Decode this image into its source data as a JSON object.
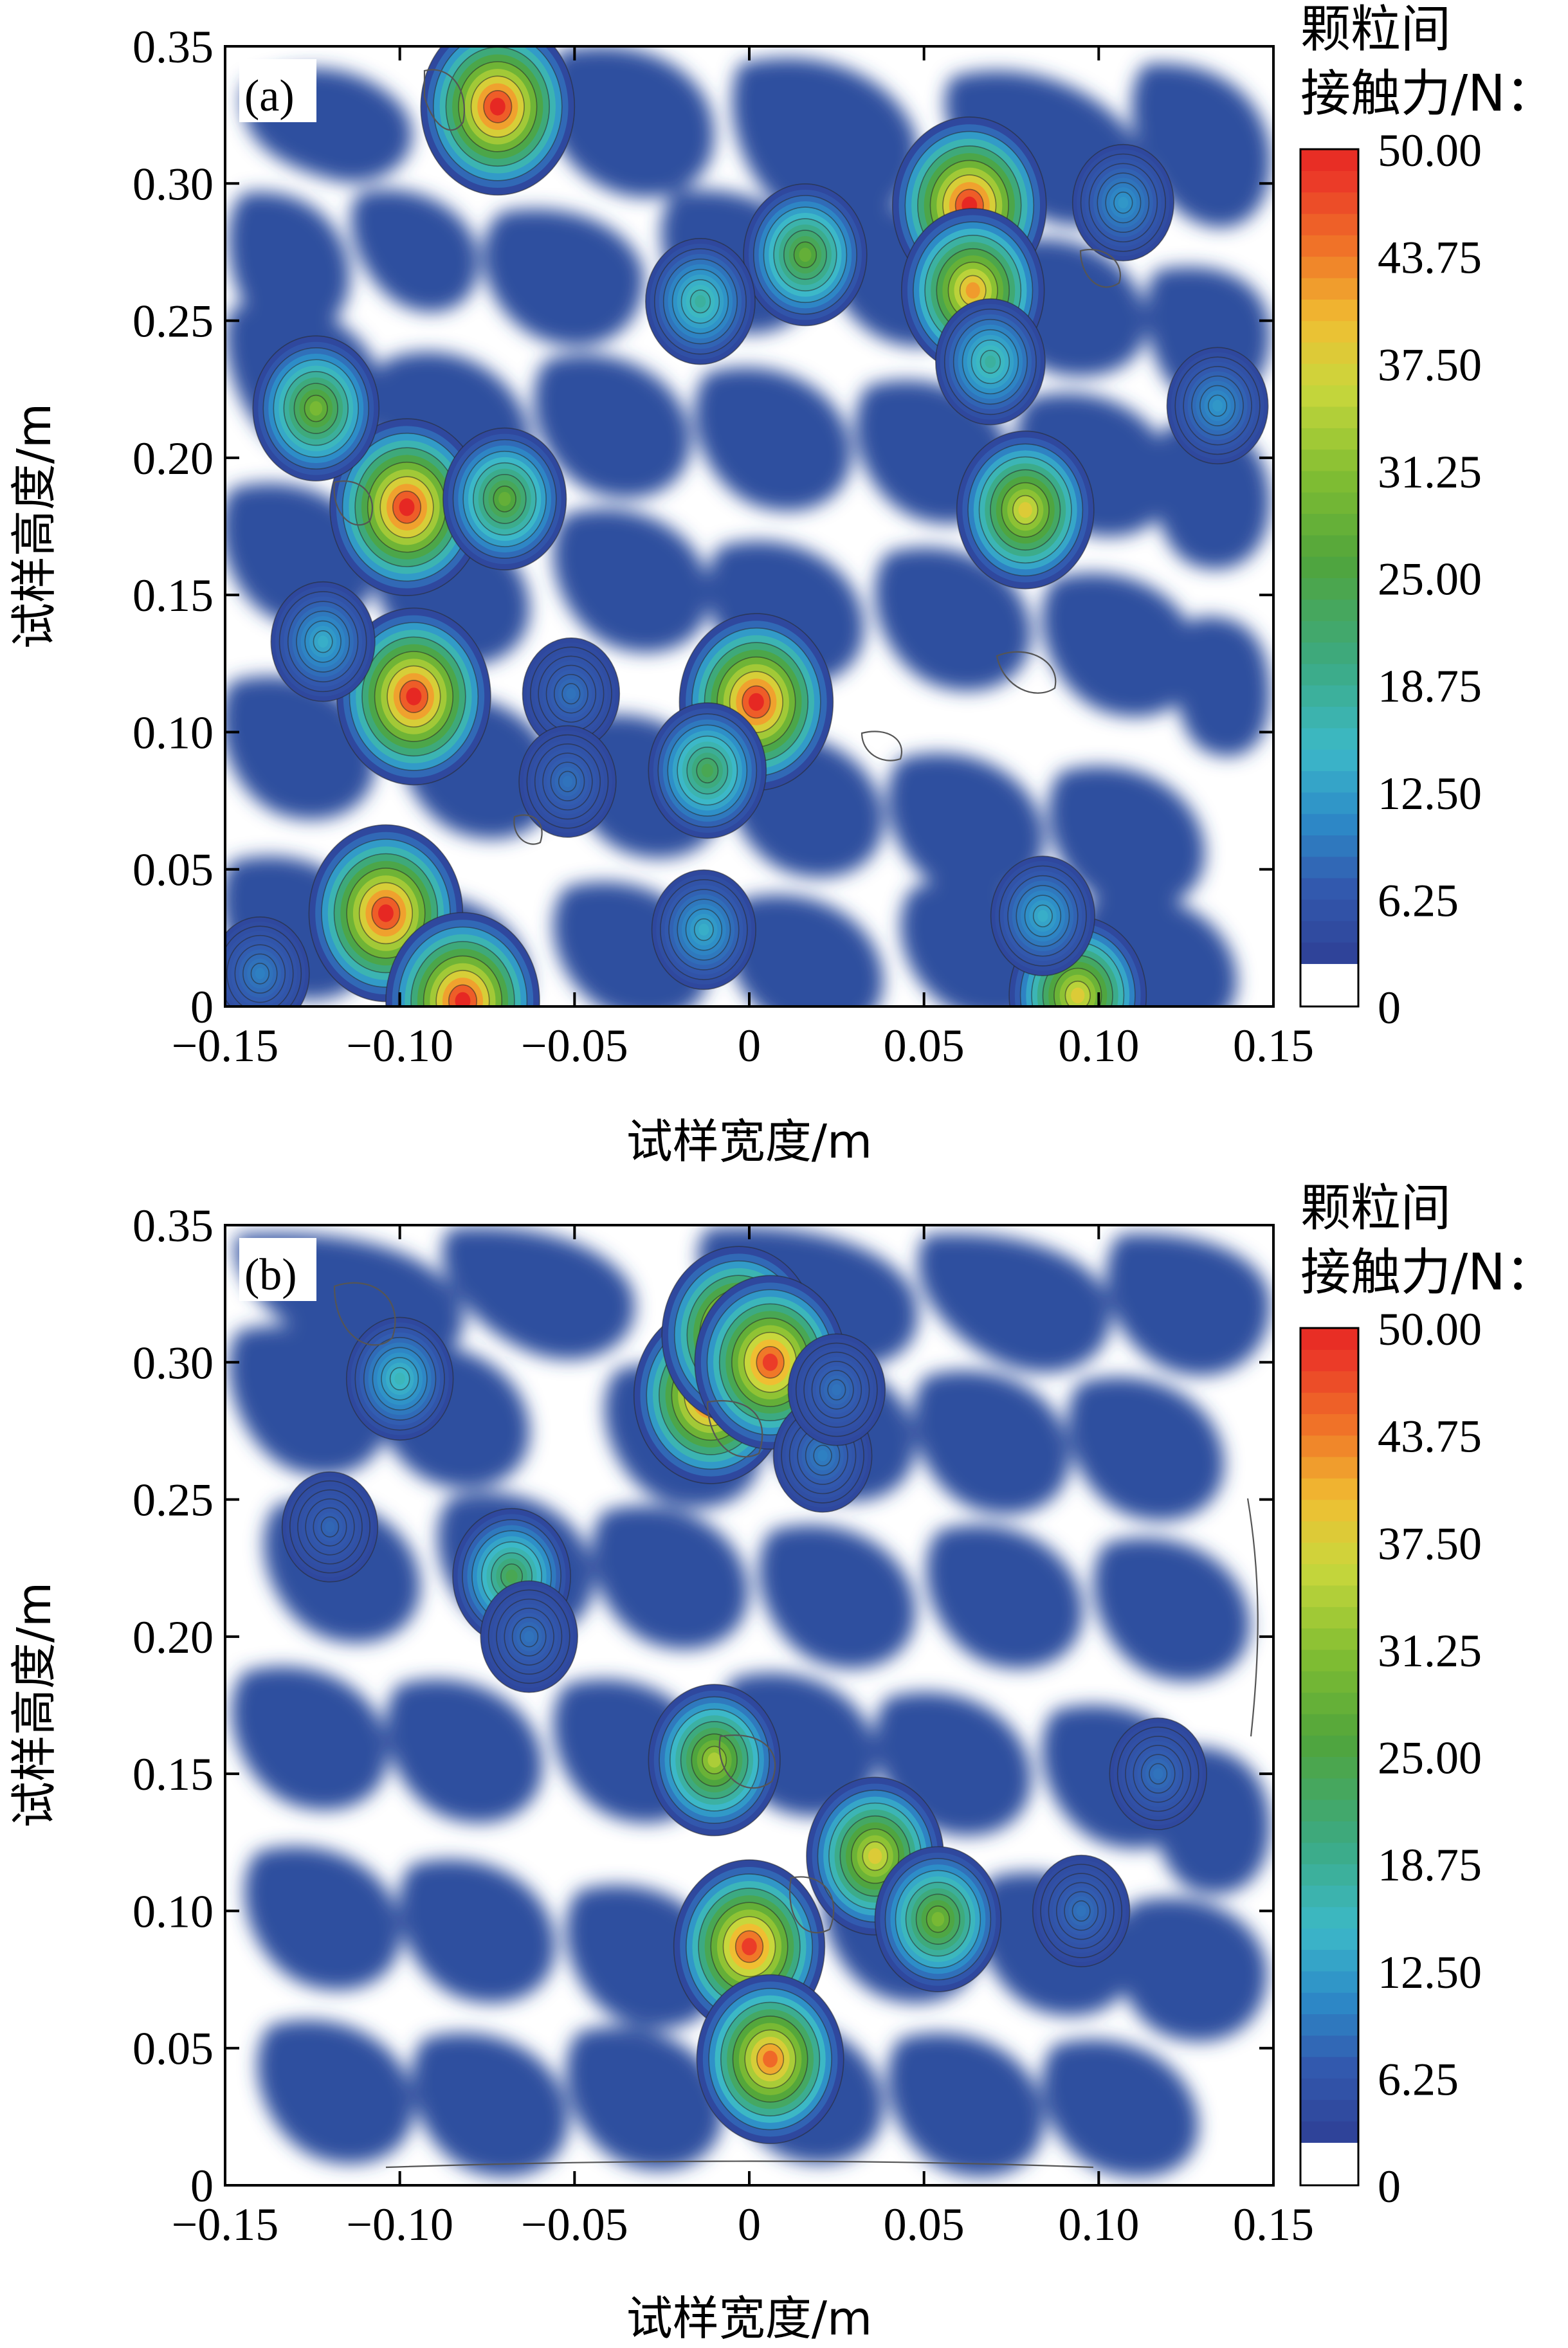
{
  "chart_data": [
    {
      "type": "heatmap",
      "panel_label": "(a)",
      "xlabel": "试样宽度/m",
      "ylabel": "试样高度/m",
      "xlim": [
        -0.15,
        0.15
      ],
      "ylim": [
        0,
        0.35
      ],
      "x_ticks": [
        "−0.15",
        "−0.10",
        "−0.05",
        "0",
        "0.05",
        "0.10",
        "0.15"
      ],
      "y_ticks": [
        "0",
        "0.05",
        "0.10",
        "0.15",
        "0.20",
        "0.25",
        "0.30",
        "0.35"
      ],
      "colorbar": {
        "title_lines": [
          "颗粒间",
          "接触力/N："
        ],
        "min": 0,
        "max": 50,
        "tick_labels": [
          "0",
          "6.25",
          "12.50",
          "18.75",
          "25.00",
          "31.25",
          "37.50",
          "43.75",
          "50.00"
        ]
      },
      "peaks": [
        {
          "x": -0.072,
          "y": 0.328,
          "value": 50
        },
        {
          "x": -0.098,
          "y": 0.182,
          "value": 52
        },
        {
          "x": -0.096,
          "y": 0.113,
          "value": 50
        },
        {
          "x": -0.104,
          "y": 0.034,
          "value": 50
        },
        {
          "x": 0.002,
          "y": 0.111,
          "value": 50
        },
        {
          "x": 0.063,
          "y": 0.292,
          "value": 50
        },
        {
          "x": 0.064,
          "y": 0.261,
          "value": 42
        },
        {
          "x": 0.079,
          "y": 0.181,
          "value": 38
        },
        {
          "x": -0.124,
          "y": 0.218,
          "value": 30
        },
        {
          "x": -0.07,
          "y": 0.185,
          "value": 28
        },
        {
          "x": 0.016,
          "y": 0.274,
          "value": 28
        },
        {
          "x": -0.014,
          "y": 0.257,
          "value": 18
        },
        {
          "x": -0.012,
          "y": 0.086,
          "value": 24
        },
        {
          "x": 0.069,
          "y": 0.235,
          "value": 18
        },
        {
          "x": -0.122,
          "y": 0.133,
          "value": 14
        },
        {
          "x": -0.082,
          "y": 0.002,
          "value": 50
        },
        {
          "x": 0.094,
          "y": 0.004,
          "value": 38
        },
        {
          "x": -0.013,
          "y": 0.028,
          "value": 14
        },
        {
          "x": 0.084,
          "y": 0.033,
          "value": 14
        },
        {
          "x": 0.134,
          "y": 0.219,
          "value": 12
        },
        {
          "x": 0.107,
          "y": 0.293,
          "value": 12
        },
        {
          "x": -0.14,
          "y": 0.012,
          "value": 10
        },
        {
          "x": -0.051,
          "y": 0.114,
          "value": 9
        },
        {
          "x": -0.052,
          "y": 0.082,
          "value": 9
        }
      ]
    },
    {
      "type": "heatmap",
      "panel_label": "(b)",
      "xlabel": "试样宽度/m",
      "ylabel": "试样高度/m",
      "xlim": [
        -0.15,
        0.15
      ],
      "ylim": [
        0,
        0.35
      ],
      "x_ticks": [
        "−0.15",
        "−0.10",
        "−0.05",
        "0",
        "0.05",
        "0.10",
        "0.15"
      ],
      "y_ticks": [
        "0",
        "0.05",
        "0.10",
        "0.15",
        "0.20",
        "0.25",
        "0.30",
        "0.35"
      ],
      "colorbar": {
        "title_lines": [
          "颗粒间",
          "接触力/N："
        ],
        "min": 0,
        "max": 50,
        "tick_labels": [
          "0",
          "6.25",
          "12.50",
          "18.75",
          "25.00",
          "31.25",
          "37.50",
          "43.75",
          "50.00"
        ]
      },
      "peaks": [
        {
          "x": -0.011,
          "y": 0.288,
          "value": 52
        },
        {
          "x": -0.003,
          "y": 0.31,
          "value": 52
        },
        {
          "x": 0.006,
          "y": 0.3,
          "value": 48
        },
        {
          "x": 0.0,
          "y": 0.087,
          "value": 48
        },
        {
          "x": 0.006,
          "y": 0.046,
          "value": 45
        },
        {
          "x": 0.036,
          "y": 0.12,
          "value": 38
        },
        {
          "x": 0.054,
          "y": 0.097,
          "value": 30
        },
        {
          "x": -0.01,
          "y": 0.155,
          "value": 34
        },
        {
          "x": -0.068,
          "y": 0.222,
          "value": 24
        },
        {
          "x": -0.1,
          "y": 0.294,
          "value": 16
        },
        {
          "x": 0.021,
          "y": 0.266,
          "value": 10
        },
        {
          "x": -0.063,
          "y": 0.2,
          "value": 9
        },
        {
          "x": 0.117,
          "y": 0.15,
          "value": 9
        },
        {
          "x": 0.095,
          "y": 0.1,
          "value": 9
        },
        {
          "x": 0.025,
          "y": 0.29,
          "value": 9
        },
        {
          "x": -0.12,
          "y": 0.24,
          "value": 8
        }
      ]
    }
  ]
}
